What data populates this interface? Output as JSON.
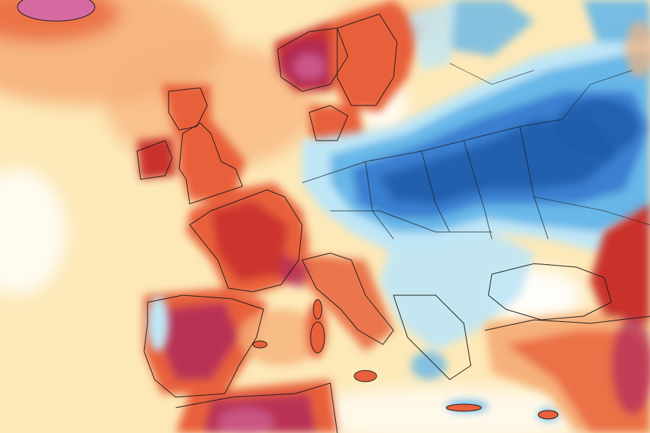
{
  "map": {
    "colors": {
      "sea_warm": "#fde9b8",
      "sea_neutral": "#ffffff",
      "warm_light": "#f6b07a",
      "warm": "#e8613a",
      "warm_strong": "#c9302c",
      "hot": "#b02a5a",
      "hot_peak": "#d46aa0",
      "cool_light": "#bfe6f6",
      "cool": "#67b7e8",
      "cold": "#3a7fd0",
      "cold_strong": "#1f5aa8",
      "border": "#1a1a1a"
    }
  }
}
